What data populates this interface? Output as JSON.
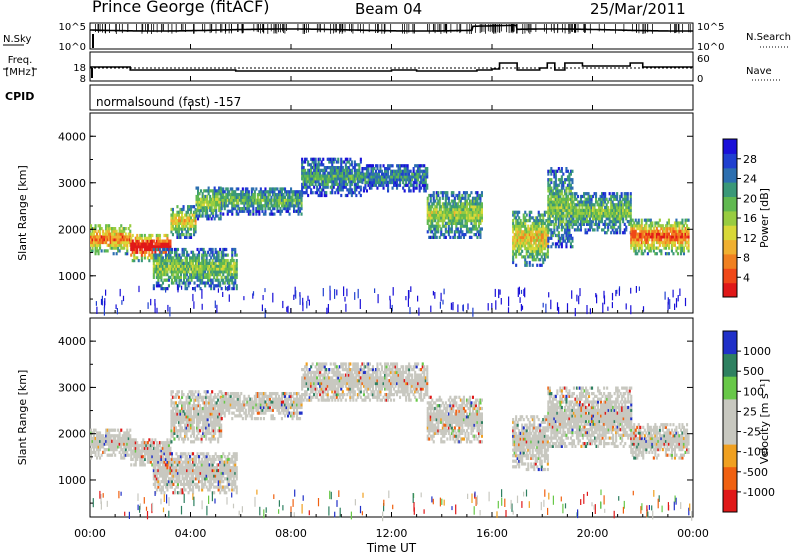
{
  "header": {
    "station": "Prince George (fitACF)",
    "beam": "Beam 04",
    "date": "25/Mar/2011"
  },
  "summary": {
    "nsky_label": "N.Sky",
    "nsearch_label": "N.Search",
    "freq_label_line1": "Freq.",
    "freq_label_line2": "[MHz]",
    "nave_label": "Nave",
    "cpid_label": "CPID",
    "nsky_ticks": [
      "10^5",
      "10^0"
    ],
    "nsearch_ticks": [
      "10^5",
      "10^0"
    ],
    "freq_ticks": [
      "18",
      "8"
    ],
    "nave_ticks": [
      "60",
      "0"
    ],
    "cpid_text": "normalsound (fast) -157"
  },
  "x_ticks": [
    "00:00",
    "04:00",
    "08:00",
    "12:00",
    "16:00",
    "20:00",
    "00:00"
  ],
  "xlabel": "Time UT",
  "chart_data": [
    {
      "type": "heatmap",
      "title": "",
      "xlabel": "Time UT",
      "ylabel": "Slant Range [km]",
      "xlim": [
        0,
        24
      ],
      "ylim": [
        200,
        4500
      ],
      "yticks": [
        1000,
        2000,
        3000,
        4000
      ],
      "colorbar_label": "Power [dB]",
      "colorbar_ticks": [
        "28",
        "24",
        "20",
        "16",
        "12",
        "8",
        "4"
      ],
      "colors": [
        "#1a10d8",
        "#2040d0",
        "#2d6fb0",
        "#3a9878",
        "#60b850",
        "#98cc40",
        "#d8d838",
        "#f0b030",
        "#f08020",
        "#f04818",
        "#e01818"
      ],
      "bands": [
        {
          "t0": 0.0,
          "t1": 1.6,
          "r0": 1450,
          "r1": 2100,
          "level": 0.7
        },
        {
          "t0": 1.6,
          "t1": 3.2,
          "r0": 1300,
          "r1": 1900,
          "level": 0.95
        },
        {
          "t0": 3.2,
          "t1": 4.2,
          "r0": 1800,
          "r1": 2500,
          "level": 0.55
        },
        {
          "t0": 4.2,
          "t1": 5.2,
          "r0": 2200,
          "r1": 2900,
          "level": 0.45
        },
        {
          "t0": 2.5,
          "t1": 5.8,
          "r0": 700,
          "r1": 1600,
          "level": 0.4
        },
        {
          "t0": 5.2,
          "t1": 8.4,
          "r0": 2300,
          "r1": 2900,
          "level": 0.35
        },
        {
          "t0": 8.4,
          "t1": 10.8,
          "r0": 2700,
          "r1": 3500,
          "level": 0.3
        },
        {
          "t0": 10.8,
          "t1": 13.4,
          "r0": 2800,
          "r1": 3400,
          "level": 0.25
        },
        {
          "t0": 13.4,
          "t1": 15.6,
          "r0": 1800,
          "r1": 2800,
          "level": 0.45
        },
        {
          "t0": 16.8,
          "t1": 18.2,
          "r0": 1200,
          "r1": 2400,
          "level": 0.55
        },
        {
          "t0": 18.2,
          "t1": 19.2,
          "r0": 1600,
          "r1": 3300,
          "level": 0.4
        },
        {
          "t0": 19.2,
          "t1": 21.5,
          "r0": 1900,
          "r1": 2800,
          "level": 0.4
        },
        {
          "t0": 21.5,
          "t1": 23.8,
          "r0": 1450,
          "r1": 2200,
          "level": 0.75
        }
      ]
    },
    {
      "type": "heatmap",
      "title": "",
      "xlabel": "Time UT",
      "ylabel": "Slant Range [km]",
      "xlim": [
        0,
        24
      ],
      "ylim": [
        200,
        4500
      ],
      "yticks": [
        1000,
        2000,
        3000,
        4000
      ],
      "colorbar_label": "Velocity [m s⁻¹]",
      "colorbar_ticks": [
        "1000",
        "500",
        "100",
        "25",
        "-25",
        "-100",
        "-500",
        "-1000"
      ],
      "colors": [
        "#2030c8",
        "#2e8060",
        "#68c848",
        "#c8c8c0",
        "#c8c8c0",
        "#f0a020",
        "#f06010",
        "#e01818"
      ],
      "bands": [
        {
          "t0": 0.0,
          "t1": 1.6,
          "r0": 1450,
          "r1": 2100,
          "level": 0.5
        },
        {
          "t0": 1.6,
          "t1": 3.2,
          "r0": 1300,
          "r1": 1900,
          "level": 0.5
        },
        {
          "t0": 3.2,
          "t1": 5.2,
          "r0": 1800,
          "r1": 2900,
          "level": 0.5
        },
        {
          "t0": 2.5,
          "t1": 5.8,
          "r0": 700,
          "r1": 1600,
          "level": 0.6
        },
        {
          "t0": 5.2,
          "t1": 8.4,
          "r0": 2300,
          "r1": 2900,
          "level": 0.5
        },
        {
          "t0": 8.4,
          "t1": 13.4,
          "r0": 2700,
          "r1": 3500,
          "level": 0.5
        },
        {
          "t0": 13.4,
          "t1": 15.6,
          "r0": 1800,
          "r1": 2800,
          "level": 0.45
        },
        {
          "t0": 16.8,
          "t1": 18.2,
          "r0": 1200,
          "r1": 2400,
          "level": 0.5
        },
        {
          "t0": 18.2,
          "t1": 21.5,
          "r0": 1700,
          "r1": 3000,
          "level": 0.5
        },
        {
          "t0": 21.5,
          "t1": 23.8,
          "r0": 1450,
          "r1": 2200,
          "level": 0.5
        }
      ]
    }
  ]
}
